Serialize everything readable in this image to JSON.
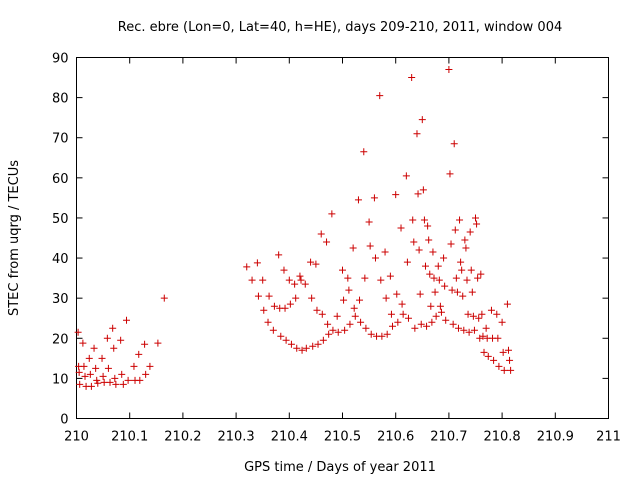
{
  "chart_data": {
    "type": "scatter",
    "title": "Rec. ebre (Lon=0, Lat=40, h=HE), days 209-210, 2011, window 004",
    "xlabel": "GPS time / Days of year 2011",
    "ylabel": "STEC from uqrg / TECUs",
    "xlim": [
      210,
      211
    ],
    "ylim": [
      0,
      90
    ],
    "xticks": [
      "210",
      "210.1",
      "210.2",
      "210.3",
      "210.4",
      "210.5",
      "210.6",
      "210.7",
      "210.8",
      "210.9",
      "211"
    ],
    "yticks": [
      "0",
      "10",
      "20",
      "30",
      "40",
      "50",
      "60",
      "70",
      "80",
      "90"
    ],
    "grid": false,
    "legend": "none",
    "marker": "plus",
    "marker_color": "#cc0000",
    "points": [
      [
        210.003,
        21.5
      ],
      [
        210.004,
        13.0
      ],
      [
        210.005,
        11.5
      ],
      [
        210.006,
        8.5
      ],
      [
        210.012,
        18.8
      ],
      [
        210.014,
        13.0
      ],
      [
        210.016,
        10.5
      ],
      [
        210.018,
        8.0
      ],
      [
        210.024,
        15.0
      ],
      [
        210.026,
        11.0
      ],
      [
        210.028,
        8.0
      ],
      [
        210.033,
        17.5
      ],
      [
        210.036,
        12.5
      ],
      [
        210.038,
        9.5
      ],
      [
        210.04,
        8.8
      ],
      [
        210.048,
        15.0
      ],
      [
        210.05,
        10.5
      ],
      [
        210.052,
        9.0
      ],
      [
        210.058,
        20.0
      ],
      [
        210.06,
        12.5
      ],
      [
        210.063,
        9.0
      ],
      [
        210.068,
        22.5
      ],
      [
        210.07,
        17.5
      ],
      [
        210.072,
        10.0
      ],
      [
        210.074,
        8.5
      ],
      [
        210.083,
        19.5
      ],
      [
        210.085,
        11.0
      ],
      [
        210.088,
        8.5
      ],
      [
        210.094,
        24.5
      ],
      [
        210.097,
        9.5
      ],
      [
        210.108,
        13.0
      ],
      [
        210.11,
        9.5
      ],
      [
        210.117,
        16.0
      ],
      [
        210.119,
        9.5
      ],
      [
        210.128,
        18.5
      ],
      [
        210.13,
        11.0
      ],
      [
        210.138,
        13.0
      ],
      [
        210.153,
        18.8
      ],
      [
        210.165,
        30.0
      ],
      [
        210.32,
        37.8
      ],
      [
        210.33,
        34.5
      ],
      [
        210.34,
        38.8
      ],
      [
        210.342,
        30.5
      ],
      [
        210.35,
        34.5
      ],
      [
        210.352,
        27.0
      ],
      [
        210.36,
        24.0
      ],
      [
        210.362,
        30.5
      ],
      [
        210.37,
        22.0
      ],
      [
        210.372,
        28.0
      ],
      [
        210.38,
        40.8
      ],
      [
        210.382,
        27.5
      ],
      [
        210.384,
        20.5
      ],
      [
        210.39,
        37.0
      ],
      [
        210.392,
        27.5
      ],
      [
        210.394,
        19.5
      ],
      [
        210.4,
        34.5
      ],
      [
        210.402,
        28.5
      ],
      [
        210.404,
        18.5
      ],
      [
        210.41,
        33.5
      ],
      [
        210.412,
        30.0
      ],
      [
        210.414,
        17.5
      ],
      [
        210.42,
        35.5
      ],
      [
        210.422,
        34.5
      ],
      [
        210.424,
        17.0
      ],
      [
        210.43,
        33.5
      ],
      [
        210.432,
        17.5
      ],
      [
        210.44,
        39.0
      ],
      [
        210.442,
        30.0
      ],
      [
        210.444,
        18.0
      ],
      [
        210.45,
        38.5
      ],
      [
        210.452,
        27.0
      ],
      [
        210.454,
        18.5
      ],
      [
        210.46,
        46.0
      ],
      [
        210.462,
        26.0
      ],
      [
        210.464,
        19.5
      ],
      [
        210.47,
        44.0
      ],
      [
        210.472,
        23.5
      ],
      [
        210.474,
        21.0
      ],
      [
        210.48,
        51.0
      ],
      [
        210.482,
        22.0
      ],
      [
        210.49,
        25.5
      ],
      [
        210.492,
        21.5
      ],
      [
        210.5,
        37.0
      ],
      [
        210.502,
        29.5
      ],
      [
        210.504,
        22.0
      ],
      [
        210.51,
        35.0
      ],
      [
        210.512,
        32.0
      ],
      [
        210.514,
        23.5
      ],
      [
        210.52,
        42.5
      ],
      [
        210.522,
        27.5
      ],
      [
        210.524,
        25.5
      ],
      [
        210.53,
        54.5
      ],
      [
        210.532,
        29.5
      ],
      [
        210.534,
        24.0
      ],
      [
        210.54,
        66.5
      ],
      [
        210.542,
        35.0
      ],
      [
        210.544,
        22.5
      ],
      [
        210.55,
        49.0
      ],
      [
        210.552,
        43.0
      ],
      [
        210.554,
        21.0
      ],
      [
        210.56,
        55.0
      ],
      [
        210.562,
        40.0
      ],
      [
        210.564,
        20.5
      ],
      [
        210.57,
        80.5
      ],
      [
        210.572,
        34.5
      ],
      [
        210.574,
        20.5
      ],
      [
        210.58,
        41.5
      ],
      [
        210.582,
        30.0
      ],
      [
        210.584,
        21.0
      ],
      [
        210.59,
        35.5
      ],
      [
        210.592,
        26.0
      ],
      [
        210.594,
        23.0
      ],
      [
        210.6,
        55.8
      ],
      [
        210.602,
        31.0
      ],
      [
        210.604,
        24.0
      ],
      [
        210.61,
        47.5
      ],
      [
        210.612,
        28.5
      ],
      [
        210.614,
        26.0
      ],
      [
        210.62,
        60.5
      ],
      [
        210.622,
        39.0
      ],
      [
        210.624,
        25.0
      ],
      [
        210.63,
        85.0
      ],
      [
        210.632,
        49.5
      ],
      [
        210.634,
        44.0
      ],
      [
        210.636,
        22.5
      ],
      [
        210.64,
        71.0
      ],
      [
        210.642,
        56.0
      ],
      [
        210.644,
        42.0
      ],
      [
        210.646,
        31.0
      ],
      [
        210.648,
        23.5
      ],
      [
        210.65,
        74.5
      ],
      [
        210.652,
        57.0
      ],
      [
        210.654,
        49.5
      ],
      [
        210.656,
        38.0
      ],
      [
        210.658,
        23.0
      ],
      [
        210.66,
        48.0
      ],
      [
        210.662,
        44.5
      ],
      [
        210.664,
        36.0
      ],
      [
        210.666,
        28.0
      ],
      [
        210.668,
        24.0
      ],
      [
        210.67,
        41.5
      ],
      [
        210.672,
        35.0
      ],
      [
        210.674,
        31.5
      ],
      [
        210.676,
        25.5
      ],
      [
        210.68,
        38.0
      ],
      [
        210.682,
        34.5
      ],
      [
        210.684,
        28.0
      ],
      [
        210.686,
        26.5
      ],
      [
        210.69,
        40.0
      ],
      [
        210.692,
        33.0
      ],
      [
        210.694,
        24.5
      ],
      [
        210.7,
        87.0
      ],
      [
        210.702,
        61.0
      ],
      [
        210.704,
        43.5
      ],
      [
        210.706,
        32.0
      ],
      [
        210.708,
        23.5
      ],
      [
        210.71,
        68.5
      ],
      [
        210.712,
        47.0
      ],
      [
        210.714,
        35.0
      ],
      [
        210.716,
        31.5
      ],
      [
        210.718,
        22.5
      ],
      [
        210.72,
        49.5
      ],
      [
        210.722,
        39.0
      ],
      [
        210.724,
        37.0
      ],
      [
        210.726,
        30.5
      ],
      [
        210.728,
        22.0
      ],
      [
        210.73,
        44.5
      ],
      [
        210.732,
        42.5
      ],
      [
        210.734,
        34.5
      ],
      [
        210.736,
        26.0
      ],
      [
        210.738,
        21.5
      ],
      [
        210.74,
        46.5
      ],
      [
        210.742,
        37.0
      ],
      [
        210.744,
        31.5
      ],
      [
        210.746,
        25.5
      ],
      [
        210.748,
        22.0
      ],
      [
        210.75,
        50.0
      ],
      [
        210.752,
        48.5
      ],
      [
        210.754,
        35.0
      ],
      [
        210.756,
        25.0
      ],
      [
        210.758,
        20.0
      ],
      [
        210.76,
        36.0
      ],
      [
        210.762,
        26.0
      ],
      [
        210.764,
        20.5
      ],
      [
        210.766,
        16.5
      ],
      [
        210.77,
        22.5
      ],
      [
        210.772,
        20.0
      ],
      [
        210.774,
        15.5
      ],
      [
        210.78,
        27.0
      ],
      [
        210.782,
        20.0
      ],
      [
        210.784,
        14.5
      ],
      [
        210.79,
        26.0
      ],
      [
        210.792,
        20.0
      ],
      [
        210.794,
        13.0
      ],
      [
        210.8,
        24.0
      ],
      [
        210.802,
        16.5
      ],
      [
        210.804,
        12.0
      ],
      [
        210.81,
        28.5
      ],
      [
        210.812,
        17.0
      ],
      [
        210.814,
        14.5
      ],
      [
        210.816,
        12.0
      ]
    ]
  }
}
